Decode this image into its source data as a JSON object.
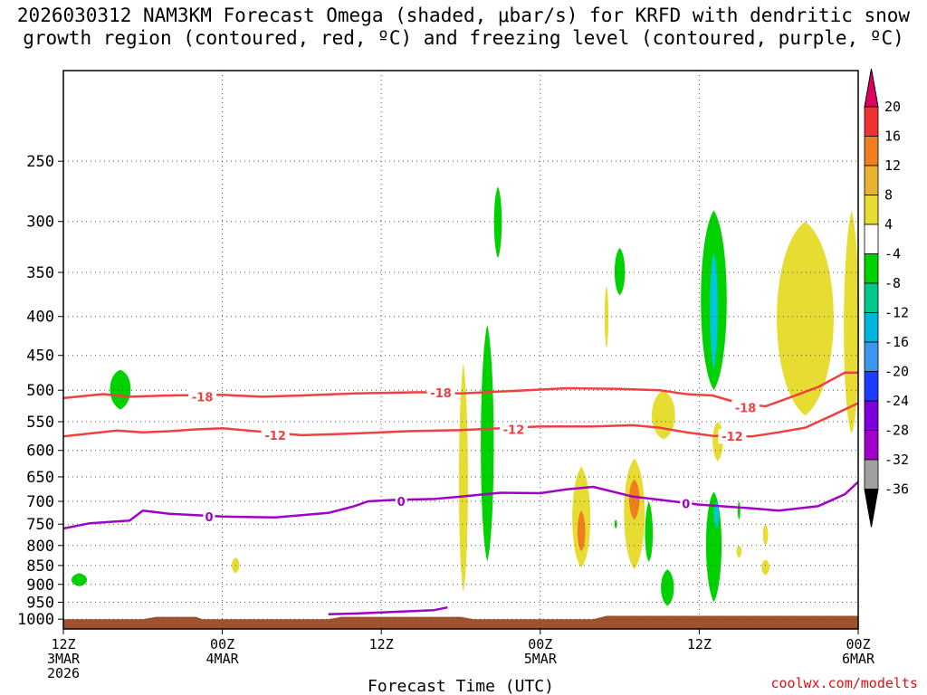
{
  "chart_data": {
    "type": "heatmap",
    "title": "2026030312 NAM3KM Forecast Omega (shaded, μbar/s) for KRFD with dendritic snow growth region (contoured, red, ºC) and freezing level (contoured, purple, ºC)",
    "title_line1": "2026030312 NAM3KM Forecast Omega (shaded, μbar/s) for KRFD with dendritic snow",
    "title_line2": "growth region (contoured, red, ºC) and freezing level (contoured, purple, ºC)",
    "xlabel": "Forecast Time (UTC)",
    "ylabel": "",
    "credit": "coolwx.com/modelts",
    "x_range_hours": [
      0,
      60
    ],
    "y_range_mb": [
      1030,
      190
    ],
    "y_scale": "pressure-log",
    "grid": true,
    "x_ticks": [
      {
        "hour": 0,
        "l1": "12Z",
        "l2": "3MAR",
        "l3": "2026"
      },
      {
        "hour": 12,
        "l1": "00Z",
        "l2": "4MAR",
        "l3": ""
      },
      {
        "hour": 24,
        "l1": "12Z",
        "l2": "",
        "l3": ""
      },
      {
        "hour": 36,
        "l1": "00Z",
        "l2": "5MAR",
        "l3": ""
      },
      {
        "hour": 48,
        "l1": "12Z",
        "l2": "",
        "l3": ""
      },
      {
        "hour": 60,
        "l1": "00Z",
        "l2": "6MAR",
        "l3": ""
      }
    ],
    "y_ticks": [
      250,
      300,
      350,
      400,
      450,
      500,
      550,
      600,
      650,
      700,
      750,
      800,
      850,
      900,
      950,
      1000
    ],
    "colorbar": {
      "levels": [
        "20",
        "16",
        "12",
        "8",
        "4",
        "-4",
        "-8",
        "-12",
        "-16",
        "-20",
        "-24",
        "-28",
        "-32",
        "-36"
      ],
      "colors": [
        "#e0005e",
        "#f03232",
        "#f07e1e",
        "#e6b432",
        "#e6dc32",
        "#ffffff",
        "#00d200",
        "#00c88c",
        "#00b4dc",
        "#3c96f0",
        "#1e3cff",
        "#7d00dc",
        "#a000c8",
        "#a0a0a0",
        "#000000"
      ]
    },
    "contours": [
      {
        "name": "-18",
        "color": "#f04040",
        "labels": [
          {
            "hour": 10.5,
            "p": 510
          },
          {
            "hour": 28.5,
            "p": 504
          },
          {
            "hour": 51.5,
            "p": 527
          }
        ],
        "points": [
          [
            0,
            512
          ],
          [
            3,
            506
          ],
          [
            5,
            510
          ],
          [
            8,
            508
          ],
          [
            12,
            507
          ],
          [
            15,
            510
          ],
          [
            18,
            508
          ],
          [
            22,
            505
          ],
          [
            27,
            503
          ],
          [
            30,
            505
          ],
          [
            35,
            500
          ],
          [
            38,
            497
          ],
          [
            42,
            498
          ],
          [
            45,
            500
          ],
          [
            47,
            506
          ],
          [
            49,
            508
          ],
          [
            51,
            520
          ],
          [
            53,
            525
          ],
          [
            55,
            510
          ],
          [
            57,
            495
          ],
          [
            59,
            474
          ],
          [
            60,
            474
          ]
        ]
      },
      {
        "name": "-12",
        "color": "#f04040",
        "labels": [
          {
            "hour": 16,
            "p": 573
          },
          {
            "hour": 34,
            "p": 563
          },
          {
            "hour": 50.5,
            "p": 575
          }
        ],
        "points": [
          [
            0,
            575
          ],
          [
            2,
            570
          ],
          [
            4,
            565
          ],
          [
            6,
            568
          ],
          [
            8,
            566
          ],
          [
            10,
            563
          ],
          [
            12,
            561
          ],
          [
            15,
            567
          ],
          [
            18,
            573
          ],
          [
            22,
            570
          ],
          [
            26,
            566
          ],
          [
            30,
            564
          ],
          [
            33,
            561
          ],
          [
            36,
            558
          ],
          [
            40,
            558
          ],
          [
            43,
            556
          ],
          [
            45,
            560
          ],
          [
            47,
            568
          ],
          [
            49,
            574
          ],
          [
            52,
            575
          ],
          [
            54,
            568
          ],
          [
            56,
            560
          ],
          [
            58,
            540
          ],
          [
            60,
            520
          ]
        ]
      },
      {
        "name": "0",
        "color": "#a000c8",
        "labels": [
          {
            "hour": 11,
            "p": 733
          },
          {
            "hour": 25.5,
            "p": 700
          },
          {
            "hour": 47,
            "p": 705
          }
        ],
        "points": [
          [
            0,
            760
          ],
          [
            2,
            748
          ],
          [
            5,
            742
          ],
          [
            6,
            720
          ],
          [
            8,
            727
          ],
          [
            12,
            733
          ],
          [
            16,
            735
          ],
          [
            20,
            725
          ],
          [
            22,
            710
          ],
          [
            23,
            700
          ],
          [
            25,
            697
          ],
          [
            28,
            695
          ],
          [
            30,
            690
          ],
          [
            33,
            682
          ],
          [
            36,
            683
          ],
          [
            38,
            675
          ],
          [
            40,
            670
          ],
          [
            43,
            690
          ],
          [
            46,
            700
          ],
          [
            48,
            707
          ],
          [
            52,
            715
          ],
          [
            54,
            720
          ],
          [
            57,
            710
          ],
          [
            59,
            685
          ],
          [
            60,
            660
          ]
        ]
      },
      {
        "name": "0-low",
        "color": "#a000c8",
        "labels": [],
        "points": [
          [
            20,
            985
          ],
          [
            22,
            983
          ],
          [
            25,
            978
          ],
          [
            28,
            973
          ],
          [
            29,
            965
          ]
        ]
      }
    ],
    "omega_regions": [
      {
        "hour": 4.3,
        "p": 495,
        "hw": 0.8,
        "p_top": 470,
        "p_bot": 530,
        "value": -6
      },
      {
        "hour": 1.2,
        "p": 890,
        "hw": 0.6,
        "p_top": 870,
        "p_bot": 905,
        "value": -6
      },
      {
        "hour": 13.0,
        "p": 845,
        "hw": 0.3,
        "p_top": 830,
        "p_bot": 870,
        "value": 5
      },
      {
        "hour": 30.2,
        "p": 700,
        "hw": 0.35,
        "p_top": 460,
        "p_bot": 920,
        "value": 5
      },
      {
        "hour": 32.0,
        "p": 600,
        "hw": 0.5,
        "p_top": 410,
        "p_bot": 840,
        "value": -6
      },
      {
        "hour": 32.8,
        "p": 300,
        "hw": 0.3,
        "p_top": 270,
        "p_bot": 335,
        "value": -6
      },
      {
        "hour": 39.1,
        "p": 745,
        "hw": 0.7,
        "p_top": 630,
        "p_bot": 855,
        "value": 6
      },
      {
        "hour": 39.1,
        "p": 770,
        "hw": 0.3,
        "p_top": 720,
        "p_bot": 815,
        "value": 14
      },
      {
        "hour": 41.0,
        "p": 400,
        "hw": 0.15,
        "p_top": 365,
        "p_bot": 440,
        "value": 5
      },
      {
        "hour": 42.0,
        "p": 350,
        "hw": 0.4,
        "p_top": 325,
        "p_bot": 375,
        "value": -6
      },
      {
        "hour": 43.1,
        "p": 720,
        "hw": 0.8,
        "p_top": 615,
        "p_bot": 860,
        "value": 6
      },
      {
        "hour": 43.1,
        "p": 690,
        "hw": 0.4,
        "p_top": 655,
        "p_bot": 740,
        "value": 12
      },
      {
        "hour": 44.2,
        "p": 790,
        "hw": 0.3,
        "p_top": 700,
        "p_bot": 840,
        "value": -6
      },
      {
        "hour": 45.6,
        "p": 910,
        "hw": 0.5,
        "p_top": 860,
        "p_bot": 960,
        "value": -6
      },
      {
        "hour": 45.3,
        "p": 540,
        "hw": 0.9,
        "p_top": 500,
        "p_bot": 580,
        "value": 6
      },
      {
        "hour": 49.1,
        "p": 380,
        "hw": 1.0,
        "p_top": 290,
        "p_bot": 500,
        "value": -6
      },
      {
        "hour": 49.1,
        "p": 380,
        "hw": 0.3,
        "p_top": 330,
        "p_bot": 470,
        "value": -12
      },
      {
        "hour": 49.4,
        "p": 580,
        "hw": 0.4,
        "p_top": 550,
        "p_bot": 620,
        "value": 5
      },
      {
        "hour": 49.1,
        "p": 780,
        "hw": 0.6,
        "p_top": 680,
        "p_bot": 950,
        "value": -6
      },
      {
        "hour": 49.3,
        "p": 720,
        "hw": 0.2,
        "p_top": 700,
        "p_bot": 760,
        "value": -12
      },
      {
        "hour": 51.0,
        "p": 720,
        "hw": 0.1,
        "p_top": 700,
        "p_bot": 740,
        "value": -6
      },
      {
        "hour": 51.0,
        "p": 815,
        "hw": 0.2,
        "p_top": 800,
        "p_bot": 830,
        "value": 5
      },
      {
        "hour": 53.0,
        "p": 770,
        "hw": 0.2,
        "p_top": 750,
        "p_bot": 800,
        "value": 5
      },
      {
        "hour": 53.0,
        "p": 855,
        "hw": 0.3,
        "p_top": 835,
        "p_bot": 875,
        "value": 5
      },
      {
        "hour": 56.0,
        "p": 400,
        "hw": 2.2,
        "p_top": 300,
        "p_bot": 540,
        "value": 6
      },
      {
        "hour": 59.5,
        "p": 440,
        "hw": 0.6,
        "p_top": 290,
        "p_bot": 570,
        "value": 6
      },
      {
        "hour": 41.7,
        "p": 750,
        "hw": 0.1,
        "p_top": 740,
        "p_bot": 760,
        "value": -6
      }
    ],
    "terrain": {
      "color": "#a0522d",
      "points": [
        [
          0,
          1000
        ],
        [
          6,
          1000
        ],
        [
          7,
          993
        ],
        [
          10,
          993
        ],
        [
          10.5,
          1000
        ],
        [
          20,
          1000
        ],
        [
          21,
          993
        ],
        [
          30,
          993
        ],
        [
          31,
          1000
        ],
        [
          40,
          1000
        ],
        [
          41,
          990
        ],
        [
          60,
          990
        ]
      ]
    }
  }
}
